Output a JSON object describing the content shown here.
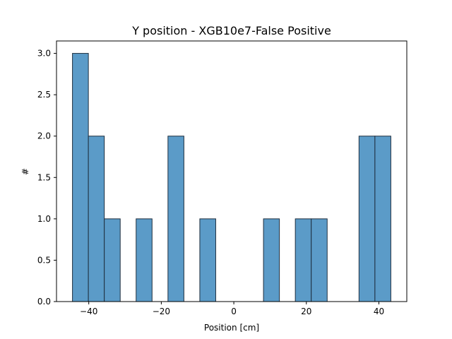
{
  "chart_data": {
    "type": "bar",
    "title": "Y position - XGB10e7-False Positive",
    "xlabel": "Position [cm]",
    "ylabel": "#",
    "xlim": [
      -48.9,
      47.7
    ],
    "ylim": [
      0,
      3.15
    ],
    "bin_start": -44.5,
    "bin_width": 4.39,
    "counts": [
      3,
      2,
      1,
      0,
      1,
      0,
      2,
      0,
      1,
      0,
      0,
      0,
      1,
      0,
      1,
      1,
      0,
      0,
      2,
      2
    ],
    "xticks": [
      -40,
      -20,
      0,
      20,
      40
    ],
    "xtick_labels": [
      "−40",
      "−20",
      "0",
      "20",
      "40"
    ],
    "yticks": [
      0,
      0.5,
      1,
      1.5,
      2,
      2.5,
      3
    ],
    "ytick_labels": [
      "0.0",
      "0.5",
      "1.0",
      "1.5",
      "2.0",
      "2.5",
      "3.0"
    ],
    "bar_color": "#5b9bc8",
    "bar_edge_color": "#1f2f3f",
    "grid": false,
    "legend": "none"
  }
}
